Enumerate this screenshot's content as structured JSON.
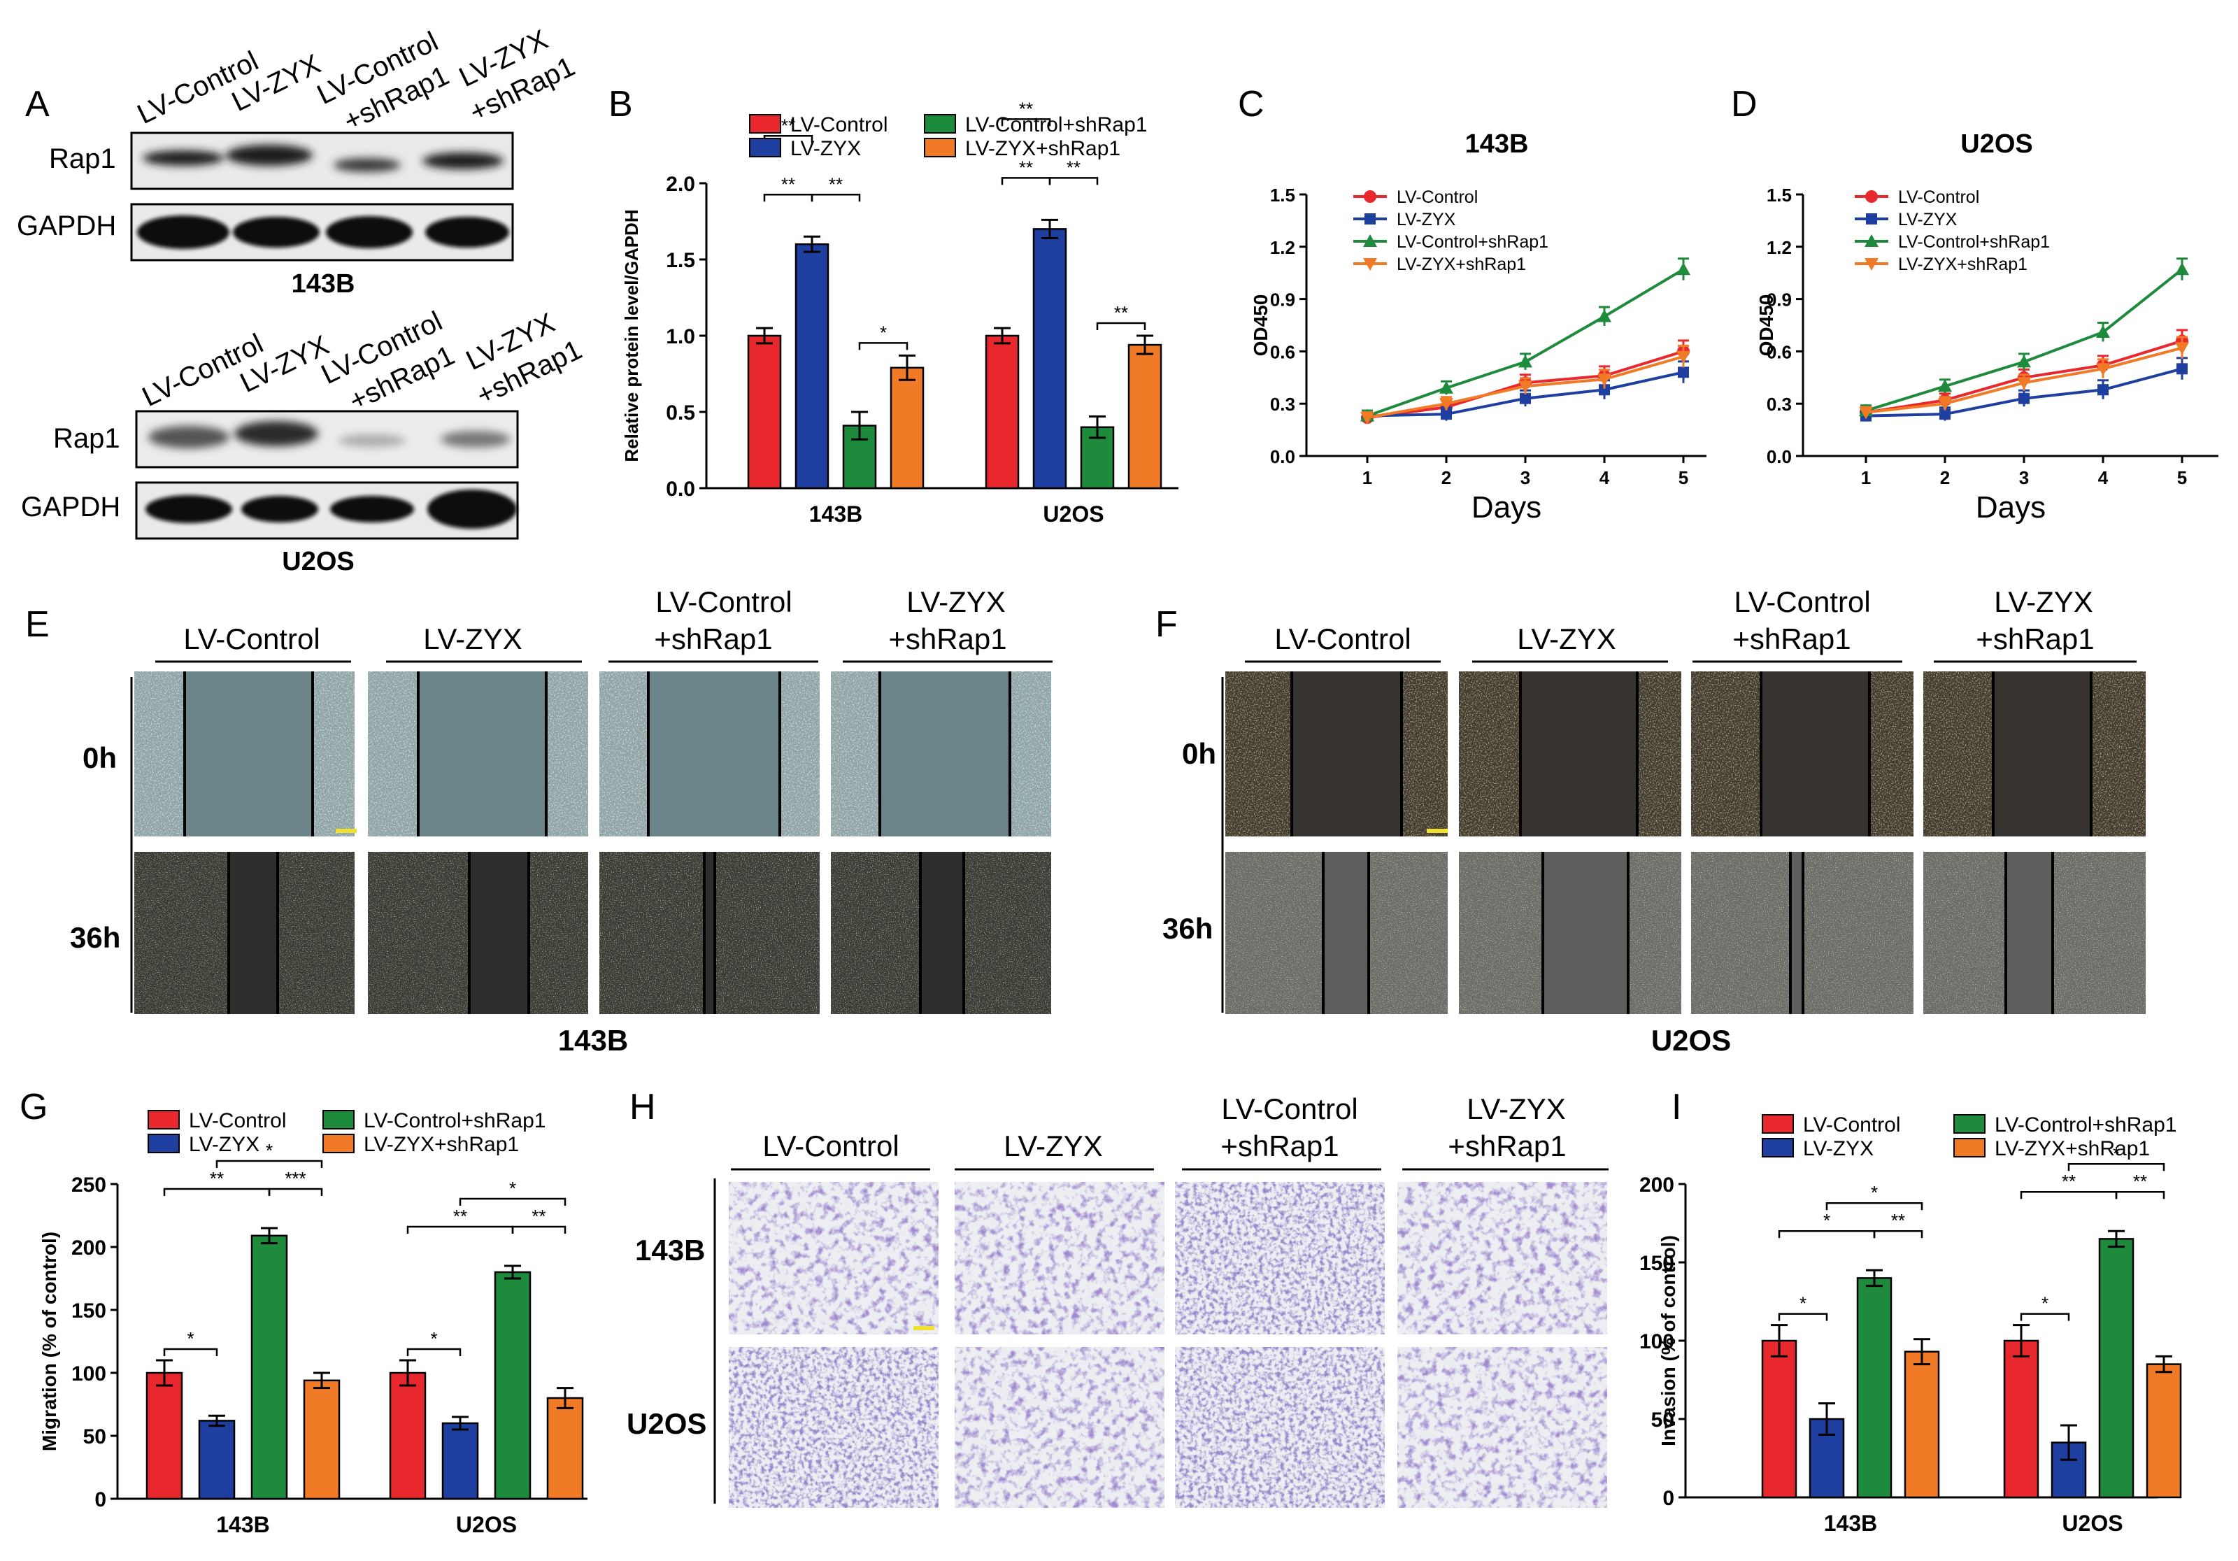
{
  "groups": {
    "lv_control": "LV-Control",
    "lv_zyx": "LV-ZYX",
    "lv_control_sh": "LV-Control+shRap1",
    "lv_zyx_sh": "LV-ZYX+shRap1",
    "line1_control": "LV-Control",
    "line2_sh": "+shRap1",
    "line1_zyx": "LV-ZYX"
  },
  "colors": {
    "red": "#e8282c",
    "blue": "#1f3fa0",
    "green": "#1e8a3c",
    "orange": "#f07a26"
  },
  "panel_a": {
    "letter": "A",
    "blots": [
      {
        "cell": "143B",
        "rows": [
          "Rap1",
          "GAPDH"
        ]
      },
      {
        "cell": "U2OS",
        "rows": [
          "Rap1",
          "GAPDH"
        ]
      }
    ]
  },
  "panel_e": {
    "letter": "E",
    "cell": "143B",
    "times": [
      "0h",
      "36h"
    ]
  },
  "panel_f": {
    "letter": "F",
    "cell": "U2OS",
    "times": [
      "0h",
      "36h"
    ]
  },
  "panel_h": {
    "letter": "H",
    "rows": [
      "143B",
      "U2OS"
    ]
  },
  "chart_data": [
    {
      "panel": "B",
      "type": "bar",
      "categories": [
        "143B",
        "U2OS"
      ],
      "ylabel": "Relative protein level/GAPDH",
      "ylim": [
        0,
        2.0
      ],
      "yticks": [
        "0.0",
        "0.5",
        "1.0",
        "1.5",
        "2.0"
      ],
      "series": [
        {
          "name": "LV-Control",
          "values": [
            1.0,
            1.0
          ]
        },
        {
          "name": "LV-ZYX",
          "values": [
            1.6,
            1.7
          ]
        },
        {
          "name": "LV-Control+shRap1",
          "values": [
            0.41,
            0.4
          ]
        },
        {
          "name": "LV-ZYX+shRap1",
          "values": [
            0.79,
            0.94
          ]
        }
      ],
      "errors": [
        [
          0.05,
          0.05
        ],
        [
          0.05,
          0.06
        ],
        [
          0.09,
          0.07
        ],
        [
          0.08,
          0.06
        ]
      ],
      "significance": [
        {
          "group": 0,
          "from": 0,
          "to": 1,
          "level": 3,
          "label": "**"
        },
        {
          "group": 0,
          "from": 0,
          "to": 1,
          "level": 1,
          "label": "**"
        },
        {
          "group": 0,
          "from": 1,
          "to": 2,
          "level": 1,
          "label": "**"
        },
        {
          "group": 0,
          "from": 2,
          "to": 3,
          "level": 0,
          "label": "*"
        },
        {
          "group": 1,
          "from": 0,
          "to": 1,
          "level": 3,
          "label": "**"
        },
        {
          "group": 1,
          "from": 0,
          "to": 1,
          "level": 1,
          "label": "**"
        },
        {
          "group": 1,
          "from": 1,
          "to": 2,
          "level": 1,
          "label": "**"
        },
        {
          "group": 1,
          "from": 2,
          "to": 3,
          "level": 0,
          "label": "**"
        }
      ],
      "legend": "top"
    },
    {
      "panel": "C",
      "type": "line",
      "title": "143B",
      "x": [
        1,
        2,
        3,
        4,
        5
      ],
      "xlabel": "Days",
      "ylabel": "OD450",
      "ylim": [
        0,
        1.5
      ],
      "yticks": [
        "0.0",
        "0.3",
        "0.6",
        "0.9",
        "1.2",
        "1.5"
      ],
      "series": [
        {
          "name": "LV-Control",
          "values": [
            0.22,
            0.28,
            0.42,
            0.46,
            0.6
          ]
        },
        {
          "name": "LV-ZYX",
          "values": [
            0.23,
            0.24,
            0.33,
            0.38,
            0.48
          ]
        },
        {
          "name": "LV-Control+shRap1",
          "values": [
            0.23,
            0.39,
            0.54,
            0.8,
            1.07
          ]
        },
        {
          "name": "LV-ZYX+shRap1",
          "values": [
            0.22,
            0.3,
            0.4,
            0.44,
            0.57
          ]
        }
      ],
      "legend": "top-left"
    },
    {
      "panel": "D",
      "type": "line",
      "title": "U2OS",
      "x": [
        1,
        2,
        3,
        4,
        5
      ],
      "xlabel": "Days",
      "ylabel": "OD450",
      "ylim": [
        0,
        1.5
      ],
      "yticks": [
        "0.0",
        "0.3",
        "0.6",
        "0.9",
        "1.2",
        "1.5"
      ],
      "series": [
        {
          "name": "LV-Control",
          "values": [
            0.25,
            0.32,
            0.45,
            0.52,
            0.66
          ]
        },
        {
          "name": "LV-ZYX",
          "values": [
            0.23,
            0.24,
            0.33,
            0.38,
            0.5
          ]
        },
        {
          "name": "LV-Control+shRap1",
          "values": [
            0.26,
            0.4,
            0.54,
            0.71,
            1.07
          ]
        },
        {
          "name": "LV-ZYX+shRap1",
          "values": [
            0.25,
            0.3,
            0.42,
            0.5,
            0.62
          ]
        }
      ],
      "legend": "top-left"
    },
    {
      "panel": "G",
      "type": "bar",
      "categories": [
        "143B",
        "U2OS"
      ],
      "ylabel": "Migration (% of control)",
      "ylim": [
        0,
        250
      ],
      "yticks": [
        "0",
        "50",
        "100",
        "150",
        "200",
        "250"
      ],
      "series": [
        {
          "name": "LV-Control",
          "values": [
            100,
            100
          ]
        },
        {
          "name": "LV-ZYX",
          "values": [
            62,
            60
          ]
        },
        {
          "name": "LV-Control+shRap1",
          "values": [
            209,
            180
          ]
        },
        {
          "name": "LV-ZYX+shRap1",
          "values": [
            94,
            80
          ]
        }
      ],
      "errors": [
        [
          10,
          10
        ],
        [
          4,
          5
        ],
        [
          6,
          5
        ],
        [
          6,
          8
        ]
      ],
      "significance": [
        {
          "group": 0,
          "from": 0,
          "to": 1,
          "level": 0,
          "label": "*"
        },
        {
          "group": 0,
          "from": 0,
          "to": 2,
          "level": 1,
          "label": "**"
        },
        {
          "group": 0,
          "from": 2,
          "to": 3,
          "level": 1,
          "label": "***"
        },
        {
          "group": 0,
          "from": 1,
          "to": 3,
          "level": 2,
          "label": "*"
        },
        {
          "group": 1,
          "from": 0,
          "to": 1,
          "level": 0,
          "label": "*"
        },
        {
          "group": 1,
          "from": 0,
          "to": 2,
          "level": 1,
          "label": "**"
        },
        {
          "group": 1,
          "from": 2,
          "to": 3,
          "level": 1,
          "label": "**"
        },
        {
          "group": 1,
          "from": 1,
          "to": 3,
          "level": 2,
          "label": "*"
        }
      ],
      "legend": "top"
    },
    {
      "panel": "I",
      "type": "bar",
      "categories": [
        "143B",
        "U2OS"
      ],
      "ylabel": "Invasion (% of control)",
      "ylim": [
        0,
        200
      ],
      "yticks": [
        "0",
        "50",
        "100",
        "150",
        "200"
      ],
      "series": [
        {
          "name": "LV-Control",
          "values": [
            100,
            100
          ]
        },
        {
          "name": "LV-ZYX",
          "values": [
            50,
            35
          ]
        },
        {
          "name": "LV-Control+shRap1",
          "values": [
            140,
            165
          ]
        },
        {
          "name": "LV-ZYX+shRap1",
          "values": [
            93,
            85
          ]
        }
      ],
      "errors": [
        [
          10,
          10
        ],
        [
          10,
          11
        ],
        [
          5,
          5
        ],
        [
          8,
          5
        ]
      ],
      "significance": [
        {
          "group": 0,
          "from": 0,
          "to": 1,
          "level": 0,
          "label": "*"
        },
        {
          "group": 0,
          "from": 0,
          "to": 2,
          "level": 1,
          "label": "*"
        },
        {
          "group": 0,
          "from": 2,
          "to": 3,
          "level": 1,
          "label": "**"
        },
        {
          "group": 0,
          "from": 1,
          "to": 3,
          "level": 2,
          "label": "*"
        },
        {
          "group": 1,
          "from": 0,
          "to": 1,
          "level": 0,
          "label": "*"
        },
        {
          "group": 1,
          "from": 0,
          "to": 2,
          "level": 1,
          "label": "**"
        },
        {
          "group": 1,
          "from": 2,
          "to": 3,
          "level": 1,
          "label": "**"
        },
        {
          "group": 1,
          "from": 1,
          "to": 3,
          "level": 2,
          "label": "*"
        }
      ],
      "legend": "top"
    }
  ]
}
